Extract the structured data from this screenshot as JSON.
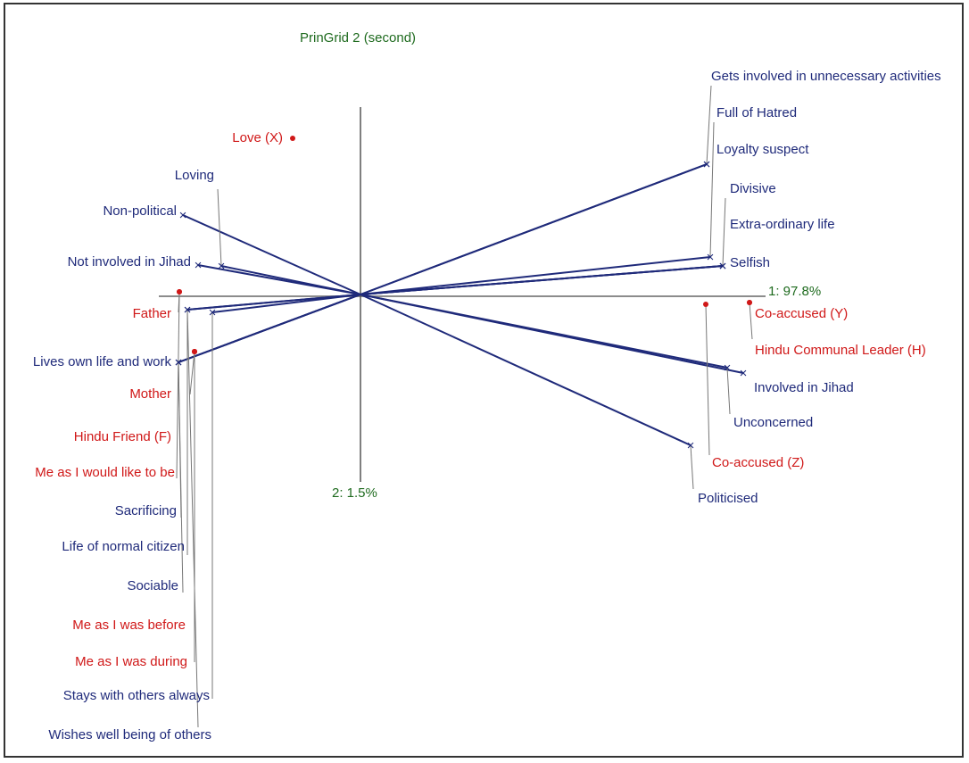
{
  "title": "PrinGrid 2 (second)",
  "axis1_label": "1: 97.8%",
  "axis2_label": "2: 1.5%",
  "colors": {
    "construct": "#1f2a7a",
    "element": "#d01818",
    "axis_text": "#1f6b1f",
    "axis": "#8c8c8c",
    "frame": "#333333"
  },
  "constructs": [
    {
      "label": "Gets involved in unnecessary activities"
    },
    {
      "label": "Full of Hatred"
    },
    {
      "label": "Loyalty suspect"
    },
    {
      "label": "Divisive"
    },
    {
      "label": "Extra-ordinary life"
    },
    {
      "label": "Selfish"
    },
    {
      "label": "Involved in Jihad"
    },
    {
      "label": "Unconcerned"
    },
    {
      "label": "Politicised"
    },
    {
      "label": "Loving"
    },
    {
      "label": "Non-political"
    },
    {
      "label": "Not involved in Jihad"
    },
    {
      "label": "Lives own life and work"
    },
    {
      "label": "Sacrificing"
    },
    {
      "label": "Life of normal citizen"
    },
    {
      "label": "Sociable"
    },
    {
      "label": "Stays with others always"
    },
    {
      "label": "Wishes well being of others"
    }
  ],
  "elements": [
    {
      "label": "Love (X)"
    },
    {
      "label": "Father"
    },
    {
      "label": "Mother"
    },
    {
      "label": "Hindu Friend (F)"
    },
    {
      "label": "Me as I would like to be"
    },
    {
      "label": "Me as I was before"
    },
    {
      "label": "Me as I was during"
    },
    {
      "label": "Co-accused (Y)"
    },
    {
      "label": "Hindu Communal Leader (H)"
    },
    {
      "label": "Co-accused (Z)"
    }
  ]
}
